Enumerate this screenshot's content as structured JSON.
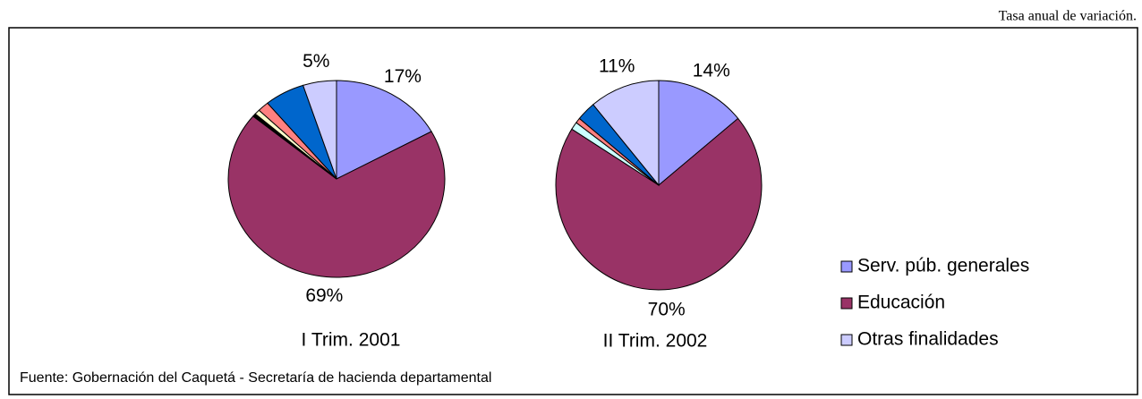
{
  "header": "Tasa anual de variación.",
  "source": "Fuente: Gobernación del Caquetá - Secretaría de hacienda departamental",
  "chart_data": [
    {
      "type": "pie",
      "title": "I Trim. 2001",
      "categories": [
        "Serv. púb. generales",
        "Educación",
        null,
        null,
        null,
        null,
        "Otras finalidades"
      ],
      "values": [
        17,
        69,
        0.5,
        0.8,
        1.7,
        6,
        5
      ],
      "value_labels": [
        "17%",
        "69%",
        null,
        null,
        null,
        null,
        "5%"
      ],
      "colors": [
        "#9999ff",
        "#993366",
        "#000000",
        "#ffffcc",
        "#ff8080",
        "#0066cc",
        "#ccccff"
      ],
      "legend": "right"
    },
    {
      "type": "pie",
      "title": "II Trim. 2002",
      "categories": [
        "Serv. púb. generales",
        "Educación",
        null,
        null,
        null,
        "Otras finalidades"
      ],
      "values": [
        14,
        70,
        1.2,
        0.8,
        3,
        11
      ],
      "value_labels": [
        "14%",
        "70%",
        null,
        null,
        null,
        "11%"
      ],
      "colors": [
        "#9999ff",
        "#993366",
        "#ccffff",
        "#ff8080",
        "#0066cc",
        "#ccccff"
      ]
    }
  ]
}
